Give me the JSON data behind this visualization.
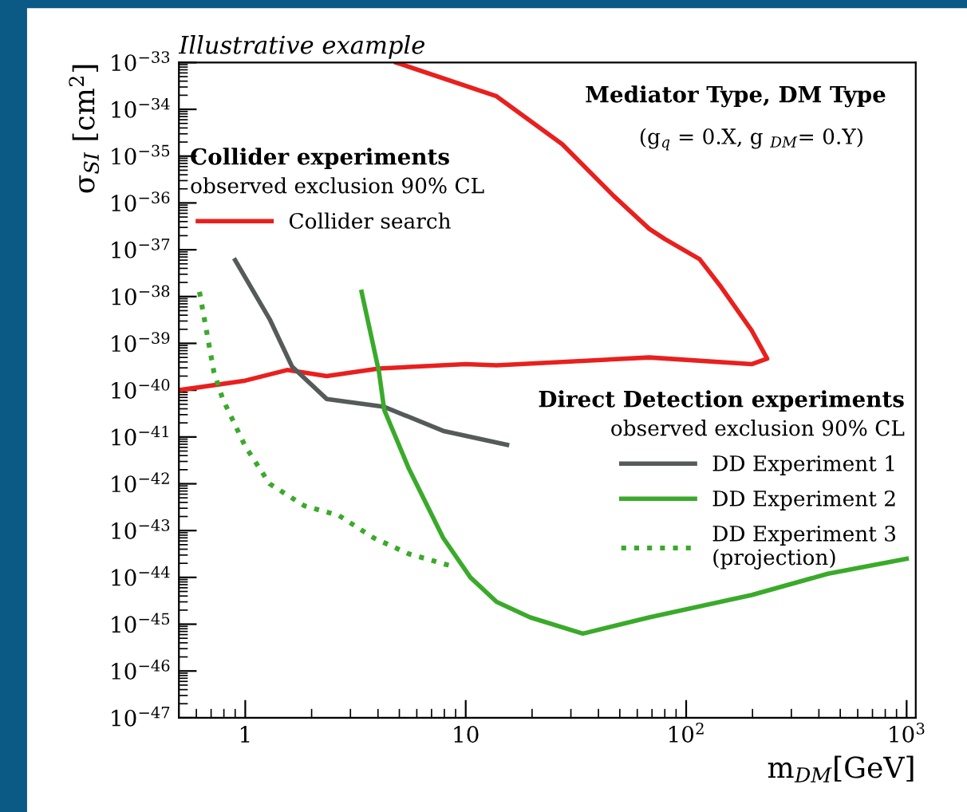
{
  "chart_data": {
    "type": "line",
    "title": "Illustrative example",
    "xlabel": "m$_{DM}$[GeV]",
    "ylabel": "σ$_{SI}$ [cm$^{2}$]",
    "log": "xy",
    "xlim": [
      0.5,
      1100
    ],
    "ylim": [
      1e-47,
      1e-33
    ],
    "xticks": [
      1,
      10,
      {
        "value": 100,
        "label": "10$^{2}$"
      },
      {
        "value": 1000,
        "label": "10$^{3}$"
      }
    ],
    "yticks": [
      {
        "value": 1e-47,
        "label": "10$^{−47}$"
      },
      {
        "value": 1e-46,
        "label": "10$^{−46}$"
      },
      {
        "value": 1e-45,
        "label": "10$^{−45}$"
      },
      {
        "value": 1e-44,
        "label": "10$^{−44}$"
      },
      {
        "value": 1e-43,
        "label": "10$^{−43}$"
      },
      {
        "value": 1e-42,
        "label": "10$^{−42}$"
      },
      {
        "value": 1e-41,
        "label": "10$^{−41}$"
      },
      {
        "value": 1e-40,
        "label": "10$^{−40}$"
      },
      {
        "value": 1e-39,
        "label": "10$^{−39}$"
      },
      {
        "value": 1e-38,
        "label": "10$^{−38}$"
      },
      {
        "value": 1e-37,
        "label": "10$^{−37}$"
      },
      {
        "value": 1e-36,
        "label": "10$^{−36}$"
      },
      {
        "value": 1e-35,
        "label": "10$^{−35}$"
      },
      {
        "value": 1e-34,
        "label": "10$^{−34}$"
      },
      {
        "value": 1e-33,
        "label": "10$^{−33}$"
      }
    ],
    "grid": false,
    "legend": "left",
    "annotations": [
      "Mediator Type, DM Type",
      "(g$_{q}$ = 0.X, g $_{DM}$= 0.Y)",
      "Collider experiments",
      "observed exclusion 90% CL",
      "Direct Detection experiments",
      "observed exclusion 90% CL"
    ],
    "series": [
      {
        "name": "Collider search",
        "color": "#e8201e",
        "line_style": "solid",
        "x": [
          0.5,
          1,
          1.55,
          2.34,
          4.04,
          10,
          13.8,
          68,
          198,
          233,
          198,
          144,
          115,
          80,
          68,
          47,
          27.4,
          13.8,
          4.84
        ],
        "values": [
          1e-40,
          1.6e-40,
          2.7e-40,
          2e-40,
          2.9e-40,
          3.6e-40,
          3.4e-40,
          5e-40,
          3.6e-40,
          4.7e-40,
          1.9e-39,
          1.6e-38,
          6.3e-38,
          1.7e-37,
          2.8e-37,
          1.4e-36,
          1.8e-35,
          1.9e-34,
          1e-33
        ]
      },
      {
        "name": "DD Experiment 1",
        "color": "#555b5b",
        "line_style": "solid",
        "x": [
          0.9,
          1.29,
          1.63,
          2.34,
          4.27,
          7.9,
          15.4
        ],
        "values": [
          6e-38,
          3.3e-39,
          3.2e-40,
          6.5e-41,
          4.4e-41,
          1.35e-41,
          6.8e-42
        ]
      },
      {
        "name": "DD Experiment 2",
        "color": "#3aaa2a",
        "line_style": "solid",
        "x": [
          3.37,
          4.04,
          4.27,
          5.5,
          7.9,
          10.5,
          13.8,
          19.6,
          34,
          68,
          198,
          440,
          1000
        ],
        "values": [
          1.26e-38,
          2.5e-40,
          3.8e-41,
          2.2e-42,
          7e-44,
          1e-44,
          3e-45,
          1.4e-45,
          6.3e-46,
          1.4e-45,
          4.2e-45,
          1.2e-44,
          2.5e-44
        ]
      },
      {
        "name": "DD Experiment 3\n(projection)",
        "color": "#3aaa2a",
        "line_style": "dotted",
        "x": [
          0.62,
          0.72,
          0.79,
          1,
          1.29,
          1.85,
          2.66,
          3.82,
          5.5,
          8.8
        ],
        "values": [
          1.26e-38,
          2.5e-40,
          6.5e-41,
          6.3e-42,
          1e-42,
          3.4e-43,
          2.1e-43,
          7e-44,
          3.2e-44,
          1.7e-44
        ]
      }
    ]
  }
}
